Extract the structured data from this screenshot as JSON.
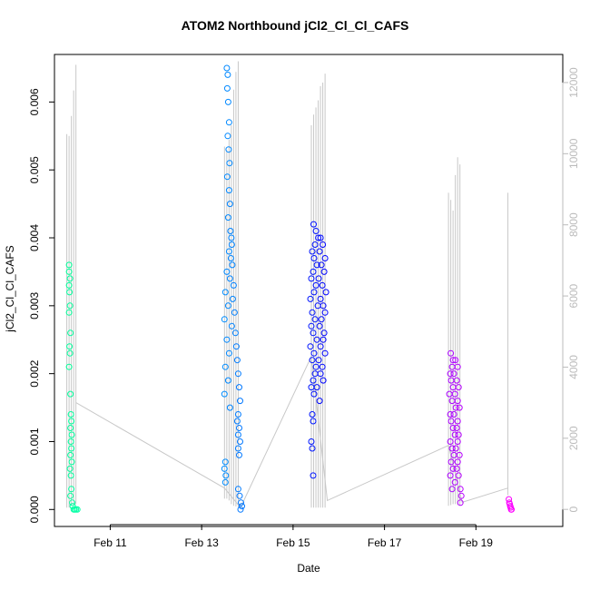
{
  "chart_data": {
    "type": "scatter",
    "title": "ATOM2 Northbound jCl2_Cl_Cl_CAFS",
    "xlabel": "Date",
    "ylabel": "jCl2_Cl_Cl_CAFS",
    "x_ticks": [
      "Feb 11",
      "Feb 13",
      "Feb 15",
      "Feb 17",
      "Feb 19"
    ],
    "x_tick_days": [
      11,
      13,
      15,
      17,
      19
    ],
    "xlim_days": [
      9.78,
      20.9
    ],
    "ylim": [
      -0.00025,
      0.0067
    ],
    "y_ticks": [
      "0.000",
      "0.001",
      "0.002",
      "0.003",
      "0.004",
      "0.005",
      "0.006"
    ],
    "y_tick_values": [
      0,
      0.001,
      0.002,
      0.003,
      0.004,
      0.005,
      0.006
    ],
    "y2_ticks": [
      "0",
      "2000",
      "4000",
      "6000",
      "8000",
      "10000",
      "12000"
    ],
    "y2_tick_values": [
      0,
      2000,
      4000,
      6000,
      8000,
      10000,
      12000
    ],
    "y2lim": [
      -480,
      12790
    ],
    "grid": false,
    "color_scale": "rainbow by time (cyan-green to magenta)",
    "points": [
      {
        "t": 10.1,
        "y": 0.0036
      },
      {
        "t": 10.1,
        "y": 0.0035
      },
      {
        "t": 10.12,
        "y": 0.0034
      },
      {
        "t": 10.1,
        "y": 0.0033
      },
      {
        "t": 10.11,
        "y": 0.0032
      },
      {
        "t": 10.12,
        "y": 0.003
      },
      {
        "t": 10.1,
        "y": 0.0029
      },
      {
        "t": 10.13,
        "y": 0.0026
      },
      {
        "t": 10.11,
        "y": 0.0024
      },
      {
        "t": 10.12,
        "y": 0.0023
      },
      {
        "t": 10.1,
        "y": 0.0021
      },
      {
        "t": 10.13,
        "y": 0.0017
      },
      {
        "t": 10.14,
        "y": 0.0014
      },
      {
        "t": 10.15,
        "y": 0.0013
      },
      {
        "t": 10.13,
        "y": 0.0012
      },
      {
        "t": 10.16,
        "y": 0.0011
      },
      {
        "t": 10.14,
        "y": 0.001
      },
      {
        "t": 10.15,
        "y": 0.0009
      },
      {
        "t": 10.13,
        "y": 0.0008
      },
      {
        "t": 10.16,
        "y": 0.0007
      },
      {
        "t": 10.12,
        "y": 0.0006
      },
      {
        "t": 10.14,
        "y": 0.0005
      },
      {
        "t": 10.15,
        "y": 0.0003
      },
      {
        "t": 10.13,
        "y": 0.0002
      },
      {
        "t": 10.17,
        "y": 0.0001
      },
      {
        "t": 10.18,
        "y": 5e-05
      },
      {
        "t": 10.2,
        "y": 0.0
      },
      {
        "t": 10.22,
        "y": 0.0
      },
      {
        "t": 10.25,
        "y": 0.0
      },
      {
        "t": 10.28,
        "y": 0.0
      },
      {
        "t": 13.55,
        "y": 0.0065
      },
      {
        "t": 13.57,
        "y": 0.0064
      },
      {
        "t": 13.56,
        "y": 0.0062
      },
      {
        "t": 13.58,
        "y": 0.006
      },
      {
        "t": 13.6,
        "y": 0.0057
      },
      {
        "t": 13.57,
        "y": 0.0055
      },
      {
        "t": 13.59,
        "y": 0.0053
      },
      {
        "t": 13.61,
        "y": 0.0051
      },
      {
        "t": 13.56,
        "y": 0.0049
      },
      {
        "t": 13.6,
        "y": 0.0047
      },
      {
        "t": 13.62,
        "y": 0.0045
      },
      {
        "t": 13.58,
        "y": 0.0043
      },
      {
        "t": 13.63,
        "y": 0.0041
      },
      {
        "t": 13.65,
        "y": 0.004
      },
      {
        "t": 13.66,
        "y": 0.0039
      },
      {
        "t": 13.6,
        "y": 0.0038
      },
      {
        "t": 13.64,
        "y": 0.0037
      },
      {
        "t": 13.67,
        "y": 0.0036
      },
      {
        "t": 13.55,
        "y": 0.0035
      },
      {
        "t": 13.62,
        "y": 0.0034
      },
      {
        "t": 13.7,
        "y": 0.0033
      },
      {
        "t": 13.52,
        "y": 0.0032
      },
      {
        "t": 13.68,
        "y": 0.0031
      },
      {
        "t": 13.58,
        "y": 0.003
      },
      {
        "t": 13.72,
        "y": 0.0029
      },
      {
        "t": 13.5,
        "y": 0.0028
      },
      {
        "t": 13.66,
        "y": 0.0027
      },
      {
        "t": 13.74,
        "y": 0.0026
      },
      {
        "t": 13.55,
        "y": 0.0025
      },
      {
        "t": 13.76,
        "y": 0.0024
      },
      {
        "t": 13.6,
        "y": 0.0023
      },
      {
        "t": 13.78,
        "y": 0.0022
      },
      {
        "t": 13.52,
        "y": 0.0021
      },
      {
        "t": 13.8,
        "y": 0.002
      },
      {
        "t": 13.58,
        "y": 0.0019
      },
      {
        "t": 13.82,
        "y": 0.0018
      },
      {
        "t": 13.5,
        "y": 0.0017
      },
      {
        "t": 13.84,
        "y": 0.0016
      },
      {
        "t": 13.62,
        "y": 0.0015
      },
      {
        "t": 13.8,
        "y": 0.0014
      },
      {
        "t": 13.78,
        "y": 0.0013
      },
      {
        "t": 13.82,
        "y": 0.0012
      },
      {
        "t": 13.8,
        "y": 0.0011
      },
      {
        "t": 13.84,
        "y": 0.001
      },
      {
        "t": 13.8,
        "y": 0.0009
      },
      {
        "t": 13.82,
        "y": 0.0008
      },
      {
        "t": 13.52,
        "y": 0.0007
      },
      {
        "t": 13.5,
        "y": 0.0006
      },
      {
        "t": 13.53,
        "y": 0.0005
      },
      {
        "t": 13.52,
        "y": 0.0004
      },
      {
        "t": 13.8,
        "y": 0.0003
      },
      {
        "t": 13.83,
        "y": 0.0002
      },
      {
        "t": 13.86,
        "y": 0.0001
      },
      {
        "t": 13.88,
        "y": 5e-05
      },
      {
        "t": 13.85,
        "y": 0.0
      },
      {
        "t": 15.45,
        "y": 0.0042
      },
      {
        "t": 15.5,
        "y": 0.0041
      },
      {
        "t": 15.55,
        "y": 0.004
      },
      {
        "t": 15.6,
        "y": 0.004
      },
      {
        "t": 15.48,
        "y": 0.0039
      },
      {
        "t": 15.65,
        "y": 0.0039
      },
      {
        "t": 15.42,
        "y": 0.0038
      },
      {
        "t": 15.58,
        "y": 0.0038
      },
      {
        "t": 15.7,
        "y": 0.0037
      },
      {
        "t": 15.46,
        "y": 0.0037
      },
      {
        "t": 15.62,
        "y": 0.0036
      },
      {
        "t": 15.52,
        "y": 0.0036
      },
      {
        "t": 15.44,
        "y": 0.0035
      },
      {
        "t": 15.68,
        "y": 0.0035
      },
      {
        "t": 15.56,
        "y": 0.0034
      },
      {
        "t": 15.4,
        "y": 0.0034
      },
      {
        "t": 15.64,
        "y": 0.0033
      },
      {
        "t": 15.5,
        "y": 0.0033
      },
      {
        "t": 15.72,
        "y": 0.0032
      },
      {
        "t": 15.46,
        "y": 0.0032
      },
      {
        "t": 15.6,
        "y": 0.0031
      },
      {
        "t": 15.38,
        "y": 0.0031
      },
      {
        "t": 15.66,
        "y": 0.003
      },
      {
        "t": 15.54,
        "y": 0.003
      },
      {
        "t": 15.42,
        "y": 0.0029
      },
      {
        "t": 15.7,
        "y": 0.0029
      },
      {
        "t": 15.48,
        "y": 0.0028
      },
      {
        "t": 15.62,
        "y": 0.0028
      },
      {
        "t": 15.4,
        "y": 0.0027
      },
      {
        "t": 15.58,
        "y": 0.0027
      },
      {
        "t": 15.68,
        "y": 0.0026
      },
      {
        "t": 15.44,
        "y": 0.0026
      },
      {
        "t": 15.52,
        "y": 0.0025
      },
      {
        "t": 15.66,
        "y": 0.0025
      },
      {
        "t": 15.38,
        "y": 0.0024
      },
      {
        "t": 15.6,
        "y": 0.0024
      },
      {
        "t": 15.46,
        "y": 0.0023
      },
      {
        "t": 15.7,
        "y": 0.0023
      },
      {
        "t": 15.56,
        "y": 0.0022
      },
      {
        "t": 15.42,
        "y": 0.0022
      },
      {
        "t": 15.64,
        "y": 0.0021
      },
      {
        "t": 15.5,
        "y": 0.0021
      },
      {
        "t": 15.48,
        "y": 0.002
      },
      {
        "t": 15.6,
        "y": 0.002
      },
      {
        "t": 15.44,
        "y": 0.0019
      },
      {
        "t": 15.66,
        "y": 0.0019
      },
      {
        "t": 15.52,
        "y": 0.0018
      },
      {
        "t": 15.4,
        "y": 0.0018
      },
      {
        "t": 15.46,
        "y": 0.0017
      },
      {
        "t": 15.58,
        "y": 0.0016
      },
      {
        "t": 15.42,
        "y": 0.0014
      },
      {
        "t": 15.44,
        "y": 0.0013
      },
      {
        "t": 15.4,
        "y": 0.001
      },
      {
        "t": 15.42,
        "y": 0.0009
      },
      {
        "t": 15.44,
        "y": 0.0005
      },
      {
        "t": 18.45,
        "y": 0.0023
      },
      {
        "t": 18.5,
        "y": 0.0022
      },
      {
        "t": 18.55,
        "y": 0.0022
      },
      {
        "t": 18.48,
        "y": 0.0021
      },
      {
        "t": 18.6,
        "y": 0.0021
      },
      {
        "t": 18.44,
        "y": 0.002
      },
      {
        "t": 18.52,
        "y": 0.002
      },
      {
        "t": 18.58,
        "y": 0.0019
      },
      {
        "t": 18.46,
        "y": 0.0019
      },
      {
        "t": 18.62,
        "y": 0.0018
      },
      {
        "t": 18.5,
        "y": 0.0018
      },
      {
        "t": 18.54,
        "y": 0.0017
      },
      {
        "t": 18.42,
        "y": 0.0017
      },
      {
        "t": 18.6,
        "y": 0.0016
      },
      {
        "t": 18.48,
        "y": 0.0016
      },
      {
        "t": 18.56,
        "y": 0.0015
      },
      {
        "t": 18.64,
        "y": 0.0015
      },
      {
        "t": 18.44,
        "y": 0.0014
      },
      {
        "t": 18.52,
        "y": 0.0014
      },
      {
        "t": 18.6,
        "y": 0.0013
      },
      {
        "t": 18.46,
        "y": 0.0013
      },
      {
        "t": 18.58,
        "y": 0.0012
      },
      {
        "t": 18.5,
        "y": 0.0012
      },
      {
        "t": 18.62,
        "y": 0.0011
      },
      {
        "t": 18.54,
        "y": 0.0011
      },
      {
        "t": 18.44,
        "y": 0.001
      },
      {
        "t": 18.6,
        "y": 0.001
      },
      {
        "t": 18.48,
        "y": 0.0009
      },
      {
        "t": 18.56,
        "y": 0.0009
      },
      {
        "t": 18.64,
        "y": 0.0008
      },
      {
        "t": 18.52,
        "y": 0.0008
      },
      {
        "t": 18.46,
        "y": 0.0007
      },
      {
        "t": 18.6,
        "y": 0.0007
      },
      {
        "t": 18.5,
        "y": 0.0006
      },
      {
        "t": 18.58,
        "y": 0.0006
      },
      {
        "t": 18.44,
        "y": 0.0005
      },
      {
        "t": 18.62,
        "y": 0.0005
      },
      {
        "t": 18.54,
        "y": 0.0004
      },
      {
        "t": 18.66,
        "y": 0.0003
      },
      {
        "t": 18.68,
        "y": 0.0002
      },
      {
        "t": 18.66,
        "y": 0.0001
      },
      {
        "t": 18.48,
        "y": 0.0003
      },
      {
        "t": 19.72,
        "y": 0.00015
      },
      {
        "t": 19.73,
        "y": 0.0001
      },
      {
        "t": 19.74,
        "y": 8e-05
      },
      {
        "t": 19.75,
        "y": 5e-05
      },
      {
        "t": 19.76,
        "y": 3e-05
      },
      {
        "t": 19.77,
        "y": 0.0
      },
      {
        "t": 19.78,
        "y": 0.0
      }
    ],
    "secondary_series": {
      "name": "",
      "axis": "right",
      "style": "grey line",
      "spikes": [
        {
          "t": 10.05,
          "base": 50,
          "peak": 10550
        },
        {
          "t": 10.1,
          "base": 50,
          "peak": 10500
        },
        {
          "t": 10.15,
          "base": 100,
          "peak": 11060
        },
        {
          "t": 10.2,
          "base": 100,
          "peak": 11780
        },
        {
          "t": 10.25,
          "base": 150,
          "peak": 12500
        },
        {
          "t": 13.5,
          "base": 300,
          "peak": 10200
        },
        {
          "t": 13.55,
          "base": 300,
          "peak": 10100
        },
        {
          "t": 13.6,
          "base": 250,
          "peak": 10400
        },
        {
          "t": 13.65,
          "base": 150,
          "peak": 10800
        },
        {
          "t": 13.7,
          "base": 100,
          "peak": 11800
        },
        {
          "t": 13.75,
          "base": 80,
          "peak": 12300
        },
        {
          "t": 13.8,
          "base": 60,
          "peak": 12600
        },
        {
          "t": 15.4,
          "base": 50,
          "peak": 10800
        },
        {
          "t": 15.45,
          "base": 50,
          "peak": 11100
        },
        {
          "t": 15.5,
          "base": 50,
          "peak": 11300
        },
        {
          "t": 15.55,
          "base": 50,
          "peak": 11500
        },
        {
          "t": 15.6,
          "base": 50,
          "peak": 11900
        },
        {
          "t": 15.65,
          "base": 50,
          "peak": 12000
        },
        {
          "t": 15.7,
          "base": 50,
          "peak": 12250
        },
        {
          "t": 18.4,
          "base": 100,
          "peak": 8900
        },
        {
          "t": 18.45,
          "base": 120,
          "peak": 8700
        },
        {
          "t": 18.5,
          "base": 150,
          "peak": 8400
        },
        {
          "t": 18.55,
          "base": 150,
          "peak": 9400
        },
        {
          "t": 18.6,
          "base": 120,
          "peak": 9900
        },
        {
          "t": 18.65,
          "base": 100,
          "peak": 9700
        },
        {
          "t": 19.7,
          "base": 400,
          "peak": 8900
        }
      ],
      "connector": [
        {
          "t": 10.25,
          "v": 3000
        },
        {
          "t": 13.5,
          "v": 600
        },
        {
          "t": 13.85,
          "v": 50
        },
        {
          "t": 15.4,
          "v": 4300
        },
        {
          "t": 15.75,
          "v": 250
        },
        {
          "t": 18.4,
          "v": 1800
        },
        {
          "t": 18.7,
          "v": 200
        },
        {
          "t": 19.7,
          "v": 600
        }
      ]
    }
  }
}
